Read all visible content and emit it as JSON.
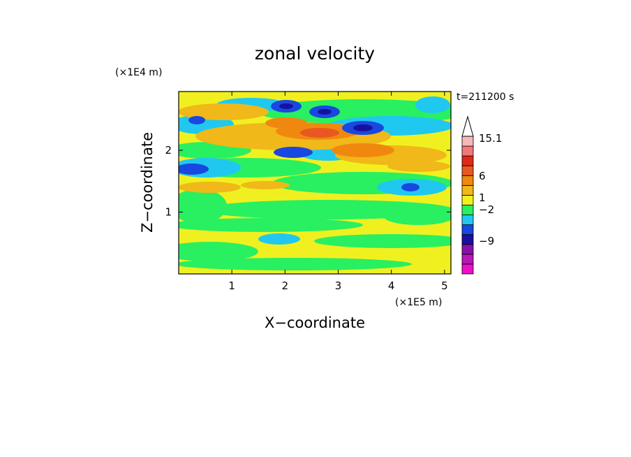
{
  "chart_data": {
    "type": "heatmap",
    "title": "zonal velocity",
    "time_label": "t=211200 s",
    "x_axis": {
      "label": "X−coordinate",
      "unit_label": "(×1E5 m)",
      "range": [
        0,
        5.12
      ],
      "ticks": [
        1,
        2,
        3,
        4,
        5
      ],
      "tick_labels": [
        "1",
        "2",
        "3",
        "4",
        "5"
      ]
    },
    "y_axis": {
      "label": "Z−coordinate",
      "unit_label": "(×1E4 m)",
      "range": [
        0,
        2.95
      ],
      "ticks": [
        1,
        2
      ],
      "tick_labels": [
        "1",
        "2"
      ]
    },
    "colorbar": {
      "position": "right",
      "extend": "max",
      "bins": [
        {
          "color": "#ee10c8"
        },
        {
          "color": "#b818b8"
        },
        {
          "color": "#8810a8"
        },
        {
          "color": "#1810a0"
        },
        {
          "color": "#1848e0"
        },
        {
          "color": "#20c8f0"
        },
        {
          "color": "#28f060"
        },
        {
          "color": "#f0f020"
        },
        {
          "color": "#f0b818"
        },
        {
          "color": "#f08810"
        },
        {
          "color": "#e85820"
        },
        {
          "color": "#e02818"
        },
        {
          "color": "#f07878"
        },
        {
          "color": "#f8b8b8"
        }
      ],
      "labels": [
        {
          "text": "15.1",
          "value": 15.1
        },
        {
          "text": "6",
          "value": 6
        },
        {
          "text": "1",
          "value": 1
        },
        {
          "text": "−2",
          "value": -2
        },
        {
          "text": "−9",
          "value": -9
        }
      ]
    },
    "field_description_colors": {
      "background": "#f0f020",
      "weak_positive": "#28f060",
      "weak_negative": "#20c8f0",
      "moderate_positive": "#f0b818",
      "strong_positive": "#f08810",
      "jet_core": "#e85820",
      "negative_core": "#1848e0",
      "strong_negative": "#1810a0"
    }
  }
}
